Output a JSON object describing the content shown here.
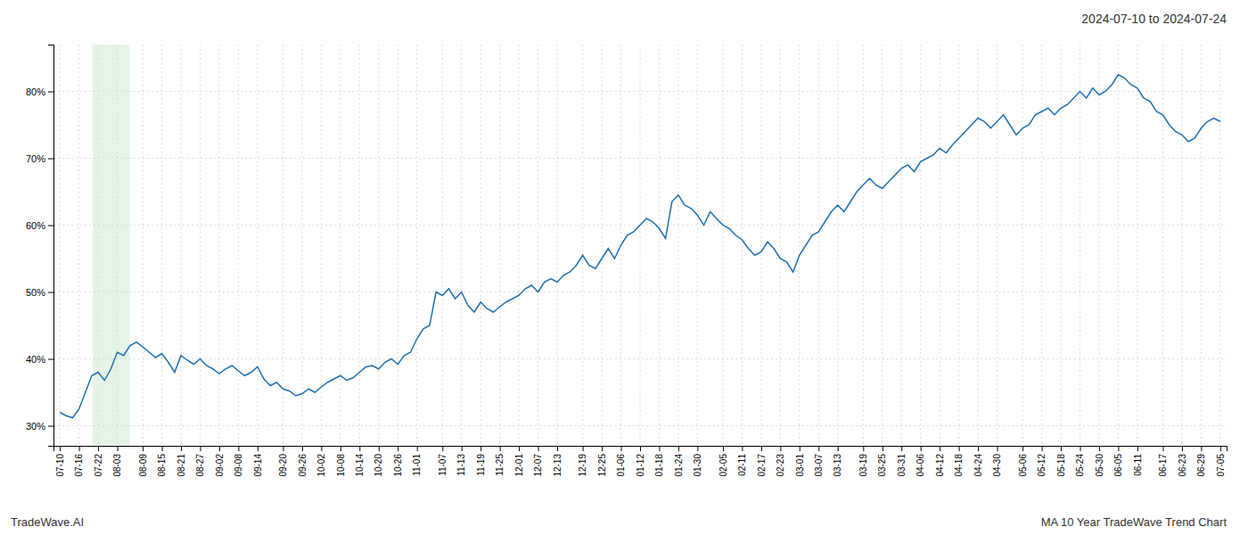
{
  "chart_data": {
    "type": "line",
    "title": "2024-07-10 to 2024-07-24",
    "annotations": [
      "TradeWave.AI",
      "MA 10 Year TradeWave Trend Chart"
    ],
    "color": "#2170b0",
    "grid": true,
    "ylim": [
      27,
      87
    ],
    "yticks": [
      {
        "value": 30,
        "label": "30%"
      },
      {
        "value": 40,
        "label": "40%"
      },
      {
        "value": 50,
        "label": "50%"
      },
      {
        "value": 60,
        "label": "60%"
      },
      {
        "value": 70,
        "label": "70%"
      },
      {
        "value": 80,
        "label": "80%"
      }
    ],
    "highlight": {
      "start": 5.124,
      "end": 10.98,
      "color": "#c8e6c9"
    },
    "categories": [
      "07-10",
      null,
      null,
      "07-16",
      null,
      null,
      "07-22",
      null,
      null,
      "08-03",
      null,
      null,
      null,
      "08-09",
      null,
      null,
      "08-15",
      null,
      null,
      "08-21",
      null,
      null,
      "08-27",
      null,
      null,
      "09-02",
      null,
      null,
      "09-08",
      null,
      null,
      "09-14",
      null,
      null,
      null,
      "09-20",
      null,
      null,
      "09-26",
      null,
      null,
      "10-02",
      null,
      null,
      "10-08",
      null,
      null,
      "10-14",
      null,
      null,
      "10-20",
      null,
      null,
      "10-26",
      null,
      null,
      "11-01",
      null,
      null,
      null,
      "11-07",
      null,
      null,
      "11-13",
      null,
      null,
      "11-19",
      null,
      null,
      "11-25",
      null,
      null,
      "12-01",
      null,
      null,
      "12-07",
      null,
      null,
      "12-13",
      null,
      null,
      null,
      "12-19",
      null,
      null,
      "12-25",
      null,
      null,
      "01-06",
      null,
      null,
      "01-12",
      null,
      null,
      "01-18",
      null,
      null,
      "01-24",
      null,
      null,
      "01-30",
      null,
      null,
      null,
      "02-05",
      null,
      null,
      "02-11",
      null,
      null,
      "02-17",
      null,
      null,
      "02-23",
      null,
      null,
      "03-01",
      null,
      null,
      "03-07",
      null,
      null,
      "03-13",
      null,
      null,
      null,
      "03-19",
      null,
      null,
      "03-25",
      null,
      null,
      "03-31",
      null,
      null,
      "04-06",
      null,
      null,
      "04-12",
      null,
      null,
      "04-18",
      null,
      null,
      "04-24",
      null,
      null,
      "04-30",
      null,
      null,
      null,
      "05-06",
      null,
      null,
      "05-12",
      null,
      null,
      "05-18",
      null,
      null,
      "05-24",
      null,
      null,
      "05-30",
      null,
      null,
      "06-05",
      null,
      null,
      "06-11",
      null,
      null,
      null,
      "06-17",
      null,
      null,
      "06-23",
      null,
      null,
      "06-29",
      null,
      null,
      "07-05"
    ],
    "values": [
      32.0,
      31.5,
      31.2,
      32.5,
      35.0,
      37.5,
      38.0,
      36.8,
      38.5,
      41.0,
      40.5,
      42.0,
      42.5,
      41.8,
      41.0,
      40.2,
      40.8,
      39.5,
      38.0,
      40.5,
      39.8,
      39.2,
      40.0,
      39.0,
      38.5,
      37.8,
      38.5,
      39.0,
      38.2,
      37.5,
      38.0,
      38.8,
      37.0,
      36.0,
      36.5,
      35.5,
      35.2,
      34.5,
      34.8,
      35.5,
      35.0,
      35.8,
      36.5,
      37.0,
      37.5,
      36.8,
      37.2,
      38.0,
      38.8,
      39.0,
      38.5,
      39.5,
      40.0,
      39.2,
      40.5,
      41.0,
      43.0,
      44.5,
      45.0,
      50.0,
      49.5,
      50.5,
      49.0,
      50.0,
      48.0,
      47.0,
      48.5,
      47.5,
      47.0,
      47.8,
      48.5,
      49.0,
      49.5,
      50.5,
      51.0,
      50.0,
      51.5,
      52.0,
      51.5,
      52.5,
      53.0,
      54.0,
      55.5,
      54.0,
      53.5,
      55.0,
      56.5,
      55.0,
      57.0,
      58.5,
      59.0,
      60.0,
      61.0,
      60.5,
      59.5,
      58.0,
      63.5,
      64.5,
      63.0,
      62.5,
      61.5,
      60.0,
      62.0,
      61.0,
      60.0,
      59.5,
      58.5,
      57.8,
      56.5,
      55.5,
      56.0,
      57.5,
      56.5,
      55.0,
      54.5,
      53.0,
      55.5,
      57.0,
      58.5,
      59.0,
      60.5,
      62.0,
      63.0,
      62.0,
      63.5,
      65.0,
      66.0,
      67.0,
      66.0,
      65.5,
      66.5,
      67.5,
      68.5,
      69.0,
      68.0,
      69.5,
      70.0,
      70.5,
      71.5,
      70.8,
      72.0,
      73.0,
      74.0,
      75.0,
      76.0,
      75.5,
      74.5,
      75.5,
      76.5,
      75.0,
      73.5,
      74.5,
      75.0,
      76.5,
      77.0,
      77.5,
      76.5,
      77.5,
      78.0,
      79.0,
      80.0,
      79.0,
      80.5,
      79.5,
      80.0,
      81.0,
      82.5,
      82.0,
      81.0,
      80.5,
      79.0,
      78.5,
      77.0,
      76.5,
      75.0,
      74.0,
      73.5,
      72.5,
      73.0,
      74.5,
      75.5,
      76.0,
      75.5
    ]
  }
}
